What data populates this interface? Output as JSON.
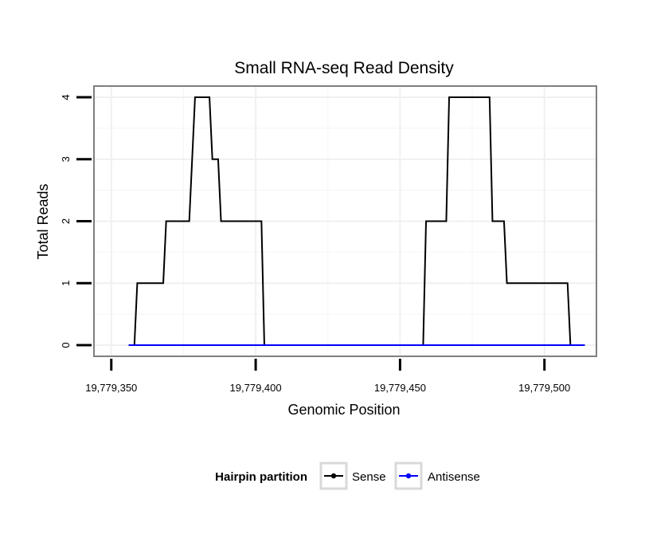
{
  "chart_data": {
    "type": "line",
    "title": "Small RNA-seq Read Density",
    "xlabel": "Genomic Position",
    "ylabel": "Total Reads",
    "xlim": [
      19779344,
      19779518
    ],
    "ylim": [
      -0.18,
      4.18
    ],
    "x_ticks": [
      19779350,
      19779400,
      19779450,
      19779500
    ],
    "x_tick_labels": [
      "19,779,350",
      "19,779,400",
      "19,779,450",
      "19,779,500"
    ],
    "y_ticks": [
      0,
      1,
      2,
      3,
      4
    ],
    "y_tick_labels": [
      "0",
      "1",
      "2",
      "3",
      "4"
    ],
    "grid": true,
    "legend": {
      "title": "Hairpin partition",
      "position": "bottom",
      "entries": [
        {
          "name": "Sense",
          "color": "#000000"
        },
        {
          "name": "Antisense",
          "color": "#0000ff"
        }
      ]
    },
    "series": [
      {
        "name": "Sense",
        "color": "#000000",
        "x": [
          19779356,
          19779358,
          19779359,
          19779368,
          19779369,
          19779377,
          19779379,
          19779384,
          19779385,
          19779387,
          19779388,
          19779402,
          19779403,
          19779458,
          19779459,
          19779466,
          19779467,
          19779481,
          19779482,
          19779486,
          19779487,
          19779508,
          19779509,
          19779514
        ],
        "values": [
          0,
          0,
          1,
          1,
          2,
          2,
          4,
          4,
          3,
          3,
          2,
          2,
          0,
          0,
          2,
          2,
          4,
          4,
          2,
          2,
          1,
          1,
          0,
          0
        ]
      },
      {
        "name": "Antisense",
        "color": "#0000ff",
        "x": [
          19779356,
          19779514
        ],
        "values": [
          0,
          0
        ]
      }
    ]
  }
}
